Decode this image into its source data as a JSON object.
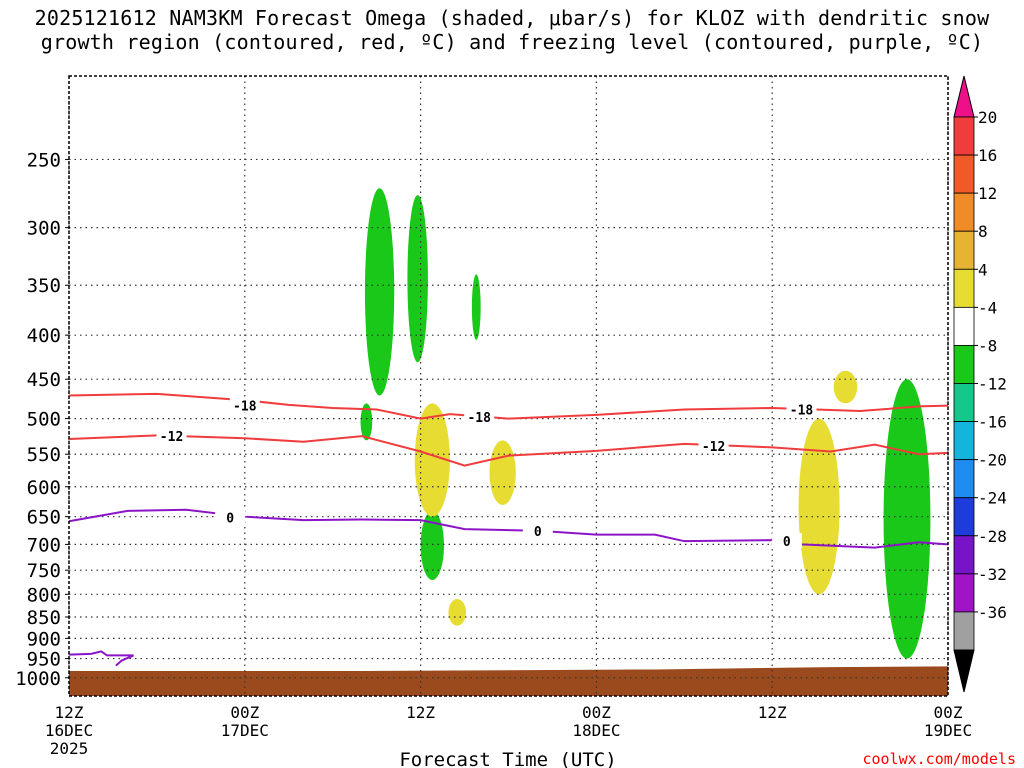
{
  "header": {
    "title_line1": "2025121612 NAM3KM Forecast Omega (shaded, μbar/s) for KLOZ with dendritic snow",
    "title_line2": "growth region (contoured, red, ºC) and freezing level (contoured, purple, ºC)"
  },
  "footer": {
    "credit": "coolwx.com/models"
  },
  "chart_data": {
    "type": "time-height",
    "title": "2025121612 NAM3KM Forecast Omega (shaded, μbar/s) for KLOZ with dendritic snow growth region (contoured, red, ºC) and freezing level (contoured, purple, ºC)",
    "xlabel": "Forecast Time (UTC)",
    "ylabel": "",
    "x_range_hours": [
      0,
      60
    ],
    "y_range_hpa": [
      1050,
      200
    ],
    "x_ticks": [
      {
        "hour": 0,
        "label": "12Z",
        "date": "16DEC",
        "year": "2025"
      },
      {
        "hour": 12,
        "label": "00Z",
        "date": "17DEC",
        "year": ""
      },
      {
        "hour": 24,
        "label": "12Z",
        "date": "",
        "year": ""
      },
      {
        "hour": 36,
        "label": "00Z",
        "date": "18DEC",
        "year": ""
      },
      {
        "hour": 48,
        "label": "12Z",
        "date": "",
        "year": ""
      },
      {
        "hour": 60,
        "label": "00Z",
        "date": "19DEC",
        "year": ""
      }
    ],
    "y_ticks": [
      250,
      300,
      350,
      400,
      450,
      500,
      550,
      600,
      650,
      700,
      750,
      800,
      850,
      900,
      950,
      1000
    ],
    "colorbar": {
      "labels": [
        "20",
        "16",
        "12",
        "8",
        "4",
        "-4",
        "-8",
        "-12",
        "-16",
        "-20",
        "-24",
        "-28",
        "-32",
        "-36"
      ],
      "colors": [
        "#ee1088",
        "#f03c3c",
        "#f05a28",
        "#f08c28",
        "#e6b432",
        "#e6dc32",
        "#ffffff",
        "#19c819",
        "#14c88c",
        "#14b4dc",
        "#1e8cf0",
        "#1e3cdc",
        "#7814c8",
        "#a014c8",
        "#a0a0a0",
        "#000000"
      ]
    },
    "contours": [
      {
        "name": "-18",
        "color": "#f03c3c",
        "points": [
          [
            0,
            470
          ],
          [
            6,
            468
          ],
          [
            12,
            476
          ],
          [
            15,
            482
          ],
          [
            18,
            486
          ],
          [
            21,
            488
          ],
          [
            24,
            500
          ],
          [
            26,
            494
          ],
          [
            30,
            500
          ],
          [
            36,
            495
          ],
          [
            42,
            488
          ],
          [
            48,
            486
          ],
          [
            54,
            490
          ],
          [
            58,
            484
          ],
          [
            60,
            483
          ]
        ]
      },
      {
        "name": "-12",
        "color": "#f03c3c",
        "points": [
          [
            0,
            528
          ],
          [
            6,
            523
          ],
          [
            12,
            527
          ],
          [
            16,
            532
          ],
          [
            20,
            524
          ],
          [
            24,
            546
          ],
          [
            27,
            567
          ],
          [
            30,
            552
          ],
          [
            36,
            545
          ],
          [
            42,
            535
          ],
          [
            48,
            540
          ],
          [
            52,
            546
          ],
          [
            55,
            536
          ],
          [
            58,
            550
          ],
          [
            60,
            548
          ]
        ]
      },
      {
        "name": "0",
        "color": "#8c14c8",
        "points": [
          [
            0,
            658
          ],
          [
            4,
            640
          ],
          [
            8,
            638
          ],
          [
            12,
            650
          ],
          [
            16,
            656
          ],
          [
            20,
            655
          ],
          [
            24,
            656
          ],
          [
            27,
            672
          ],
          [
            32,
            675
          ],
          [
            36,
            682
          ],
          [
            40,
            682
          ],
          [
            42,
            694
          ],
          [
            48,
            692
          ],
          [
            50,
            700
          ],
          [
            55,
            706
          ],
          [
            58,
            696
          ],
          [
            60,
            700
          ]
        ]
      }
    ],
    "contour_labels": [
      {
        "text": "-18",
        "hour": 12,
        "hpa": 483
      },
      {
        "text": "-18",
        "hour": 28,
        "hpa": 498
      },
      {
        "text": "-18",
        "hour": 50,
        "hpa": 488
      },
      {
        "text": "-12",
        "hour": 7,
        "hpa": 524
      },
      {
        "text": "-12",
        "hour": 44,
        "hpa": 538
      },
      {
        "text": "0",
        "hour": 11,
        "hpa": 651
      },
      {
        "text": "0",
        "hour": 32,
        "hpa": 675
      },
      {
        "text": "0",
        "hour": 49,
        "hpa": 694
      }
    ],
    "omega_areas": [
      {
        "class": "-4 to -8",
        "color": "#19c819",
        "center": [
          21.2,
          380
        ],
        "extent_hours": 1.0,
        "extent_hpa": [
          270,
          470
        ]
      },
      {
        "class": "-4 to -8",
        "color": "#19c819",
        "center": [
          23.8,
          340
        ],
        "extent_hours": 0.7,
        "extent_hpa": [
          275,
          430
        ]
      },
      {
        "class": "-4 to -8",
        "color": "#19c819",
        "center": [
          27.8,
          370
        ],
        "extent_hours": 0.3,
        "extent_hpa": [
          340,
          405
        ]
      },
      {
        "class": "-4 to -8",
        "color": "#19c819",
        "center": [
          20.3,
          505
        ],
        "extent_hours": 0.4,
        "extent_hpa": [
          480,
          530
        ]
      },
      {
        "class": "-4 to -8",
        "color": "#19c819",
        "center": [
          24.8,
          700
        ],
        "extent_hours": 0.8,
        "extent_hpa": [
          640,
          770
        ]
      },
      {
        "class": "4 to 8",
        "color": "#e6dc32",
        "center": [
          24.8,
          560
        ],
        "extent_hours": 1.2,
        "extent_hpa": [
          480,
          650
        ]
      },
      {
        "class": "4 to 8",
        "color": "#e6dc32",
        "center": [
          29.6,
          570
        ],
        "extent_hours": 0.9,
        "extent_hpa": [
          530,
          630
        ]
      },
      {
        "class": "4 to 8",
        "color": "#e6dc32",
        "center": [
          26.5,
          840
        ],
        "extent_hours": 0.6,
        "extent_hpa": [
          810,
          870
        ]
      },
      {
        "class": "4 to 8",
        "color": "#e6dc32",
        "center": [
          53.0,
          460
        ],
        "extent_hours": 0.8,
        "extent_hpa": [
          440,
          480
        ]
      },
      {
        "class": "4 to 8",
        "color": "#e6dc32",
        "center": [
          51.2,
          600
        ],
        "extent_hours": 1.4,
        "extent_hpa": [
          500,
          800
        ]
      },
      {
        "class": "-4 to -8",
        "color": "#19c819",
        "center": [
          57.2,
          650
        ],
        "extent_hours": 1.6,
        "extent_hpa": [
          450,
          950
        ]
      }
    ],
    "terrain_hpa": [
      [
        0,
        982
      ],
      [
        20,
        982
      ],
      [
        40,
        978
      ],
      [
        52,
        972
      ],
      [
        60,
        970
      ]
    ]
  }
}
